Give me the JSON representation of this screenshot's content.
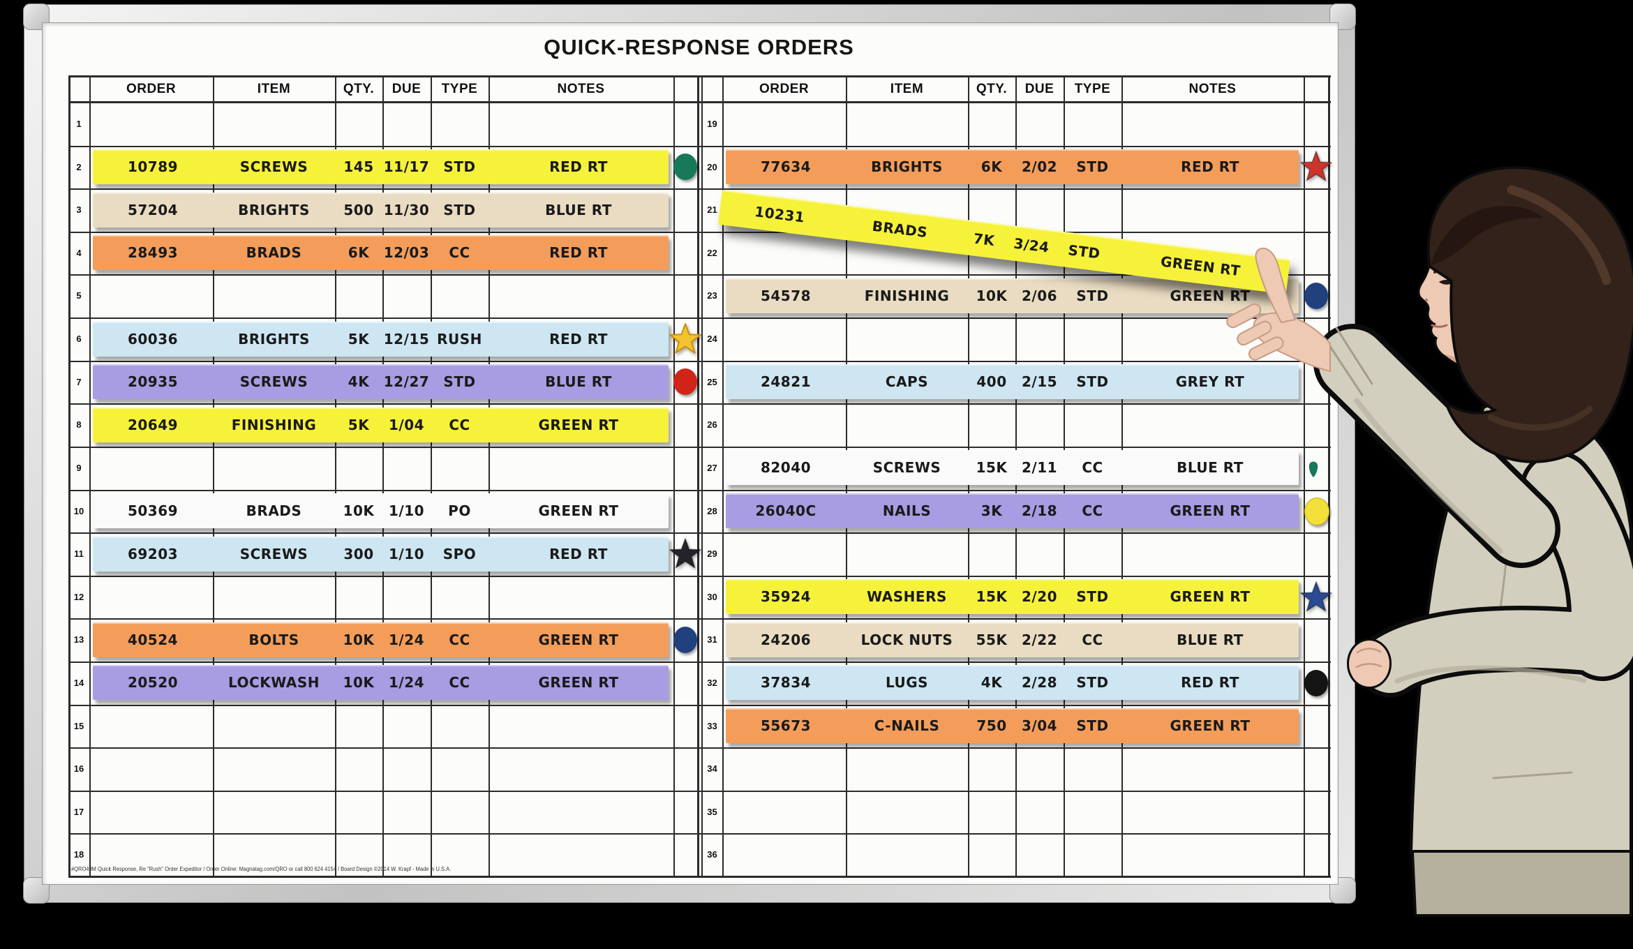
{
  "title": "QUICK-RESPONSE ORDERS",
  "columns": [
    "ORDER",
    "ITEM",
    "QTY.",
    "DUE",
    "TYPE",
    "NOTES"
  ],
  "footer_fine_print": "#QRO49M Quick Response, Re \"Rush\" Order Expeditor / Order Online: Magnatag.com/QRO or call 800 624 4154 / Board Design ©2014 W. Krapf - Made in U.S.A.",
  "palette": {
    "yellow": "#f6f23a",
    "tan": "#e9dcc2",
    "orange": "#f49d5a",
    "blue": "#cde6f2",
    "purple": "#a89ce2",
    "white": "#fafafa",
    "marker_green": "#17785a",
    "marker_red": "#d02418",
    "marker_navy": "#21407e",
    "marker_yellow": "#f2df3a",
    "marker_black": "#141414",
    "star_yellow": "#f2c42e",
    "star_red": "#cf342c",
    "star_blue": "#2b4a94",
    "star_black": "#23232b"
  },
  "left_rows": [
    {
      "num": 1
    },
    {
      "num": 2,
      "strip": {
        "color": "yellow",
        "order": "10789",
        "item": "SCREWS",
        "qty": "145",
        "due": "11/17",
        "type": "STD",
        "notes": "RED RT"
      },
      "marker": {
        "kind": "circle",
        "color": "marker_green"
      }
    },
    {
      "num": 3,
      "strip": {
        "color": "tan",
        "order": "57204",
        "item": "BRIGHTS",
        "qty": "500",
        "due": "11/30",
        "type": "STD",
        "notes": "BLUE RT"
      }
    },
    {
      "num": 4,
      "strip": {
        "color": "orange",
        "order": "28493",
        "item": "BRADS",
        "qty": "6K",
        "due": "12/03",
        "type": "CC",
        "notes": "RED RT"
      }
    },
    {
      "num": 5
    },
    {
      "num": 6,
      "strip": {
        "color": "blue",
        "order": "60036",
        "item": "BRIGHTS",
        "qty": "5K",
        "due": "12/15",
        "type": "RUSH",
        "notes": "RED RT"
      },
      "marker": {
        "kind": "star",
        "color": "star_yellow"
      }
    },
    {
      "num": 7,
      "strip": {
        "color": "purple",
        "order": "20935",
        "item": "SCREWS",
        "qty": "4K",
        "due": "12/27",
        "type": "STD",
        "notes": "BLUE RT"
      },
      "marker": {
        "kind": "circle",
        "color": "marker_red"
      }
    },
    {
      "num": 8,
      "strip": {
        "color": "yellow",
        "order": "20649",
        "item": "FINISHING",
        "qty": "5K",
        "due": "1/04",
        "type": "CC",
        "notes": "GREEN RT"
      }
    },
    {
      "num": 9
    },
    {
      "num": 10,
      "strip": {
        "color": "white",
        "order": "50369",
        "item": "BRADS",
        "qty": "10K",
        "due": "1/10",
        "type": "PO",
        "notes": "GREEN RT"
      }
    },
    {
      "num": 11,
      "strip": {
        "color": "blue",
        "order": "69203",
        "item": "SCREWS",
        "qty": "300",
        "due": "1/10",
        "type": "SPO",
        "notes": "RED RT"
      },
      "marker": {
        "kind": "star",
        "color": "star_black"
      }
    },
    {
      "num": 12
    },
    {
      "num": 13,
      "strip": {
        "color": "orange",
        "order": "40524",
        "item": "BOLTS",
        "qty": "10K",
        "due": "1/24",
        "type": "CC",
        "notes": "GREEN RT"
      },
      "marker": {
        "kind": "circle",
        "color": "marker_navy"
      }
    },
    {
      "num": 14,
      "strip": {
        "color": "purple",
        "order": "20520",
        "item": "LOCKWASH",
        "qty": "10K",
        "due": "1/24",
        "type": "CC",
        "notes": "GREEN RT"
      }
    },
    {
      "num": 15
    },
    {
      "num": 16
    },
    {
      "num": 17
    },
    {
      "num": 18
    }
  ],
  "right_rows": [
    {
      "num": 19
    },
    {
      "num": 20,
      "strip": {
        "color": "orange",
        "order": "77634",
        "item": "BRIGHTS",
        "qty": "6K",
        "due": "2/02",
        "type": "STD",
        "notes": "RED RT"
      },
      "marker": {
        "kind": "star",
        "color": "star_red"
      }
    },
    {
      "num": 21
    },
    {
      "num": 22
    },
    {
      "num": 23,
      "strip": {
        "color": "tan",
        "order": "54578",
        "item": "FINISHING",
        "qty": "10K",
        "due": "2/06",
        "type": "STD",
        "notes": "GREEN RT"
      },
      "marker": {
        "kind": "circle",
        "color": "marker_navy"
      }
    },
    {
      "num": 24
    },
    {
      "num": 25,
      "strip": {
        "color": "blue",
        "order": "24821",
        "item": "CAPS",
        "qty": "400",
        "due": "2/15",
        "type": "STD",
        "notes": "GREY RT"
      }
    },
    {
      "num": 26
    },
    {
      "num": 27,
      "strip": {
        "color": "white",
        "order": "82040",
        "item": "SCREWS",
        "qty": "15K",
        "due": "2/11",
        "type": "CC",
        "notes": "BLUE RT"
      },
      "marker": {
        "kind": "drip",
        "color": "marker_green"
      }
    },
    {
      "num": 28,
      "strip": {
        "color": "purple",
        "order": "26040C",
        "item": "NAILS",
        "qty": "3K",
        "due": "2/18",
        "type": "CC",
        "notes": "GREEN RT"
      },
      "marker": {
        "kind": "circle",
        "color": "marker_yellow"
      }
    },
    {
      "num": 29
    },
    {
      "num": 30,
      "strip": {
        "color": "yellow",
        "order": "35924",
        "item": "WASHERS",
        "qty": "15K",
        "due": "2/20",
        "type": "STD",
        "notes": "GREEN RT"
      },
      "marker": {
        "kind": "star",
        "color": "star_blue"
      }
    },
    {
      "num": 31,
      "strip": {
        "color": "tan",
        "order": "24206",
        "item": "LOCK NUTS",
        "qty": "55K",
        "due": "2/22",
        "type": "CC",
        "notes": "BLUE RT"
      }
    },
    {
      "num": 32,
      "strip": {
        "color": "blue",
        "order": "37834",
        "item": "LUGS",
        "qty": "4K",
        "due": "2/28",
        "type": "STD",
        "notes": "RED RT"
      },
      "marker": {
        "kind": "circle",
        "color": "marker_black"
      }
    },
    {
      "num": 33,
      "strip": {
        "color": "orange",
        "order": "55673",
        "item": "C-NAILS",
        "qty": "750",
        "due": "3/04",
        "type": "STD",
        "notes": "GREEN RT"
      }
    },
    {
      "num": 34
    },
    {
      "num": 35
    },
    {
      "num": 36
    }
  ],
  "tilted_strip": {
    "color": "yellow",
    "order": "10231",
    "item": "BRADS",
    "qty": "7K",
    "due": "3/24",
    "type": "STD",
    "notes": "GREEN RT"
  }
}
